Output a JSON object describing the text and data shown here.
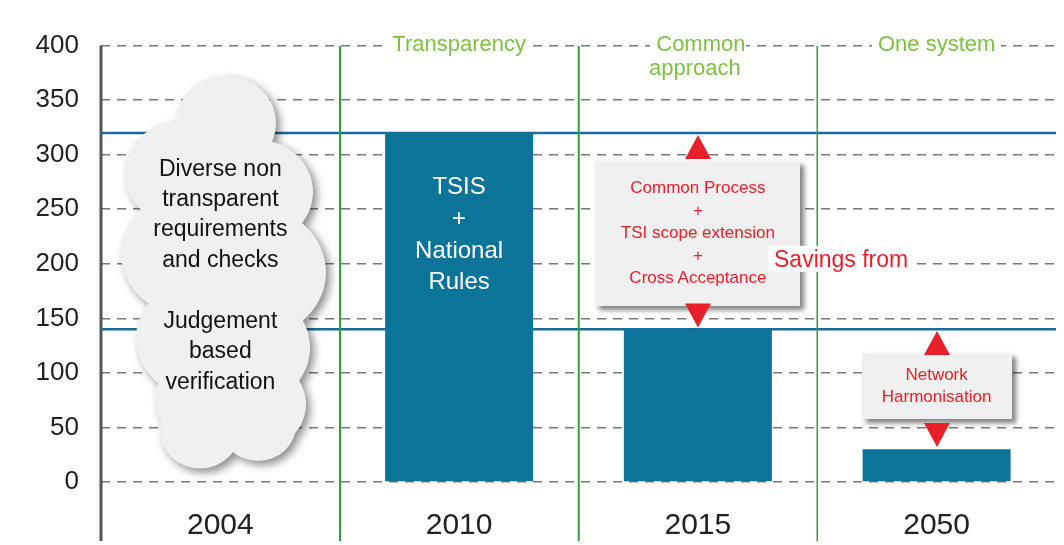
{
  "chart_data": {
    "type": "bar",
    "categories": [
      "2004",
      "2010",
      "2015",
      "2050"
    ],
    "values": [
      null,
      320,
      140,
      30
    ],
    "color": "#0c7499",
    "ylim": [
      0,
      400
    ],
    "yticks": [
      0,
      50,
      100,
      150,
      200,
      250,
      300,
      350,
      400
    ],
    "grid": "y",
    "legend": false,
    "ref_lines": [
      {
        "axis": "y",
        "value": 320,
        "color": "#1a6a9a"
      },
      {
        "axis": "y",
        "value": 140,
        "color": "#1a6a9a"
      }
    ],
    "annotations": [
      "Transparency",
      "Common approach",
      "One system",
      "Diverse non transparent requirements and checks",
      "Judgement based verification",
      "TSIS\n+\nNational Rules",
      "Common Process\n+\nTSI scope extension\n+\nCross Acceptance",
      "Savings from",
      "Network Harmonisation"
    ]
  }
}
